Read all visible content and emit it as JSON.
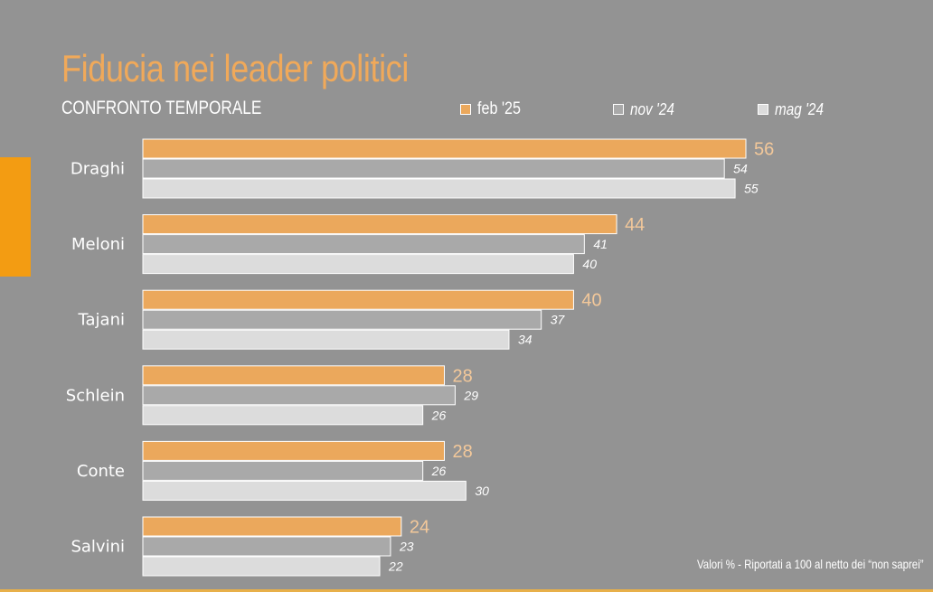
{
  "header": {
    "title": "Fiducia nei leader politici",
    "subtitle": "CONFRONTO TEMPORALE"
  },
  "legend": {
    "feb": "feb '25",
    "nov": "nov '24",
    "mag": "mag '24"
  },
  "footnote": "Valori % - Riportati a 100 al netto dei “non saprei”",
  "colors": {
    "background": "#939393",
    "feb": "#eba85c",
    "nov": "#a9a9a9",
    "mag": "#dcdcdc",
    "accent": "#f39c12"
  },
  "chart_data": {
    "type": "bar",
    "orientation": "horizontal",
    "title": "Fiducia nei leader politici",
    "subtitle": "CONFRONTO TEMPORALE",
    "categories": [
      "Draghi",
      "Meloni",
      "Tajani",
      "Schlein",
      "Conte",
      "Salvini"
    ],
    "series": [
      {
        "name": "feb '25",
        "values": [
          56,
          44,
          40,
          28,
          28,
          24
        ]
      },
      {
        "name": "nov '24",
        "values": [
          54,
          41,
          37,
          29,
          26,
          23
        ]
      },
      {
        "name": "mag '24",
        "values": [
          55,
          40,
          34,
          26,
          30,
          22
        ]
      }
    ],
    "xlim": [
      0,
      56
    ],
    "grid": false,
    "legend_position": "top",
    "unit_note": "Valori % - Riportati a 100 al netto dei “non saprei”"
  }
}
